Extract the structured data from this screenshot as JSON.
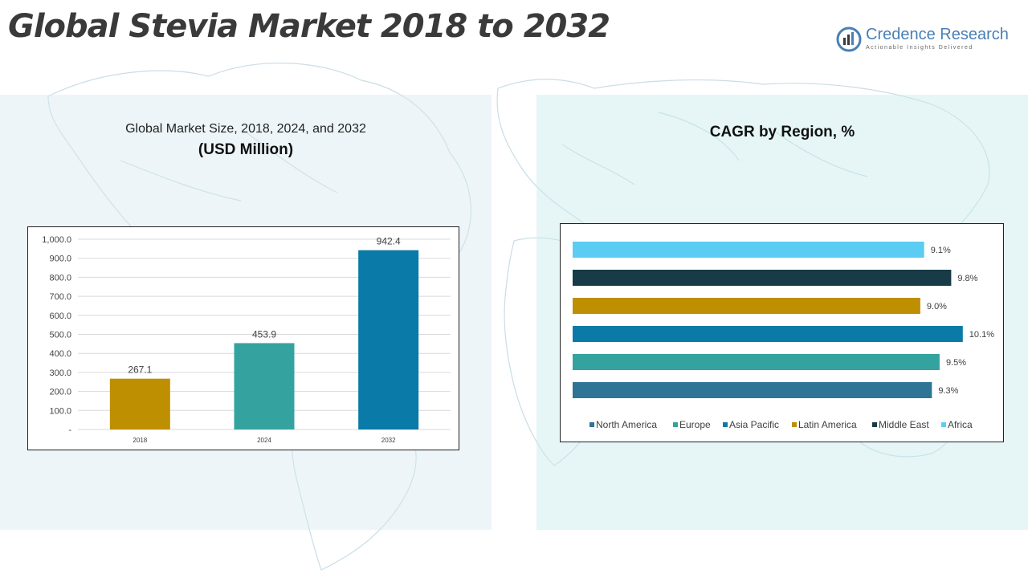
{
  "page": {
    "title": "Global Stevia Market 2018 to 2032"
  },
  "logo": {
    "name": "Credence Research",
    "tagline": "Actionable Insights Delivered",
    "icon": "credence-logo-icon"
  },
  "colors": {
    "panel_left": "#dbe9f1",
    "panel_right": "#d3eef0",
    "north_america": "#2e7494",
    "europe": "#34a3a0",
    "asia_pacific": "#0a7aa8",
    "latin_america": "#be8f00",
    "middle_east": "#173b47",
    "africa": "#5ccdf2"
  },
  "chart_data": [
    {
      "type": "bar",
      "title": "Global Market Size, 2018, 2024, and 2032",
      "subtitle": "(USD Million)",
      "categories": [
        "2018",
        "2024",
        "2032"
      ],
      "values": [
        267.1,
        453.9,
        942.4
      ],
      "value_labels": [
        "267.1",
        "453.9",
        "942.4"
      ],
      "bar_colors": [
        "#be8f00",
        "#34a3a0",
        "#0a7aa8"
      ],
      "ylim": [
        0,
        1000
      ],
      "yticks": [
        "-",
        "100.0",
        "200.0",
        "300.0",
        "400.0",
        "500.0",
        "600.0",
        "700.0",
        "800.0",
        "900.0",
        "1,000.0"
      ],
      "grid": true
    },
    {
      "type": "bar",
      "orientation": "horizontal",
      "title": "CAGR by Region, %",
      "categories": [
        "North America",
        "Europe",
        "Asia Pacific",
        "Latin America",
        "Middle East",
        "Africa"
      ],
      "values": [
        9.3,
        9.5,
        10.1,
        9.0,
        9.8,
        9.1
      ],
      "value_labels": [
        "9.3%",
        "9.5%",
        "10.1%",
        "9.0%",
        "9.8%",
        "9.1%"
      ],
      "bar_colors": [
        "#2e7494",
        "#34a3a0",
        "#0a7aa8",
        "#be8f00",
        "#173b47",
        "#5ccdf2"
      ],
      "legend": "bottom",
      "grid": false
    }
  ]
}
